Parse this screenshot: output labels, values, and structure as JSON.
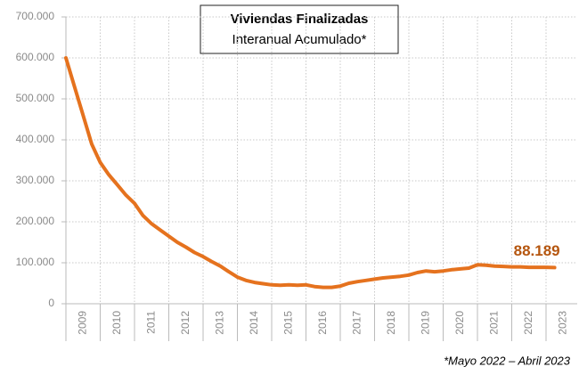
{
  "chart_data": {
    "type": "line",
    "title": "Viviendas Finalizadas",
    "subtitle": "Interanual Acumulado*",
    "footnote": "*Mayo 2022 – Abril 2023",
    "annotation": {
      "text": "88.189"
    },
    "categories": [
      "2009",
      "2010",
      "2011",
      "2012",
      "2013",
      "2014",
      "2015",
      "2016",
      "2017",
      "2018",
      "2019",
      "2020",
      "2021",
      "2022",
      "2023"
    ],
    "xlim": [
      2009,
      2024
    ],
    "ylim": [
      0,
      700000
    ],
    "yticks": [
      0,
      {
        "value": 100000,
        "label": "100.000"
      },
      {
        "value": 200000,
        "label": "200.000"
      },
      {
        "value": 300000,
        "label": "300.000"
      },
      {
        "value": 400000,
        "label": "400.000"
      },
      {
        "value": 500000,
        "label": "500.000"
      },
      {
        "value": 600000,
        "label": "600.000"
      },
      {
        "value": 700000,
        "label": "700.000"
      }
    ],
    "grid": true,
    "series": [
      {
        "color": "#e5721e",
        "x": [
          2009,
          2009.25,
          2009.5,
          2009.75,
          2010,
          2010.25,
          2010.5,
          2010.75,
          2011,
          2011.25,
          2011.5,
          2011.75,
          2012,
          2012.25,
          2012.5,
          2012.75,
          2013,
          2013.25,
          2013.5,
          2013.75,
          2014,
          2014.25,
          2014.5,
          2014.75,
          2015,
          2015.25,
          2015.5,
          2015.75,
          2016,
          2016.25,
          2016.5,
          2016.75,
          2017,
          2017.25,
          2017.5,
          2017.75,
          2018,
          2018.25,
          2018.5,
          2018.75,
          2019,
          2019.25,
          2019.5,
          2019.75,
          2020,
          2020.25,
          2020.5,
          2020.75,
          2021,
          2021.25,
          2021.5,
          2021.75,
          2022,
          2022.25,
          2022.5,
          2022.75,
          2023,
          2023.25
        ],
        "values": [
          600000,
          530000,
          460000,
          390000,
          345000,
          315000,
          290000,
          265000,
          245000,
          215000,
          195000,
          180000,
          165000,
          150000,
          138000,
          125000,
          115000,
          103000,
          92000,
          78000,
          65000,
          57000,
          52000,
          49000,
          46000,
          45000,
          46000,
          45000,
          46000,
          42000,
          40000,
          40000,
          43000,
          50000,
          54000,
          57000,
          60000,
          63000,
          65000,
          67000,
          70000,
          76000,
          80000,
          78000,
          80000,
          83000,
          85000,
          87000,
          95000,
          94000,
          92000,
          91000,
          90000,
          90000,
          89000,
          89000,
          89000,
          88189
        ]
      }
    ]
  }
}
